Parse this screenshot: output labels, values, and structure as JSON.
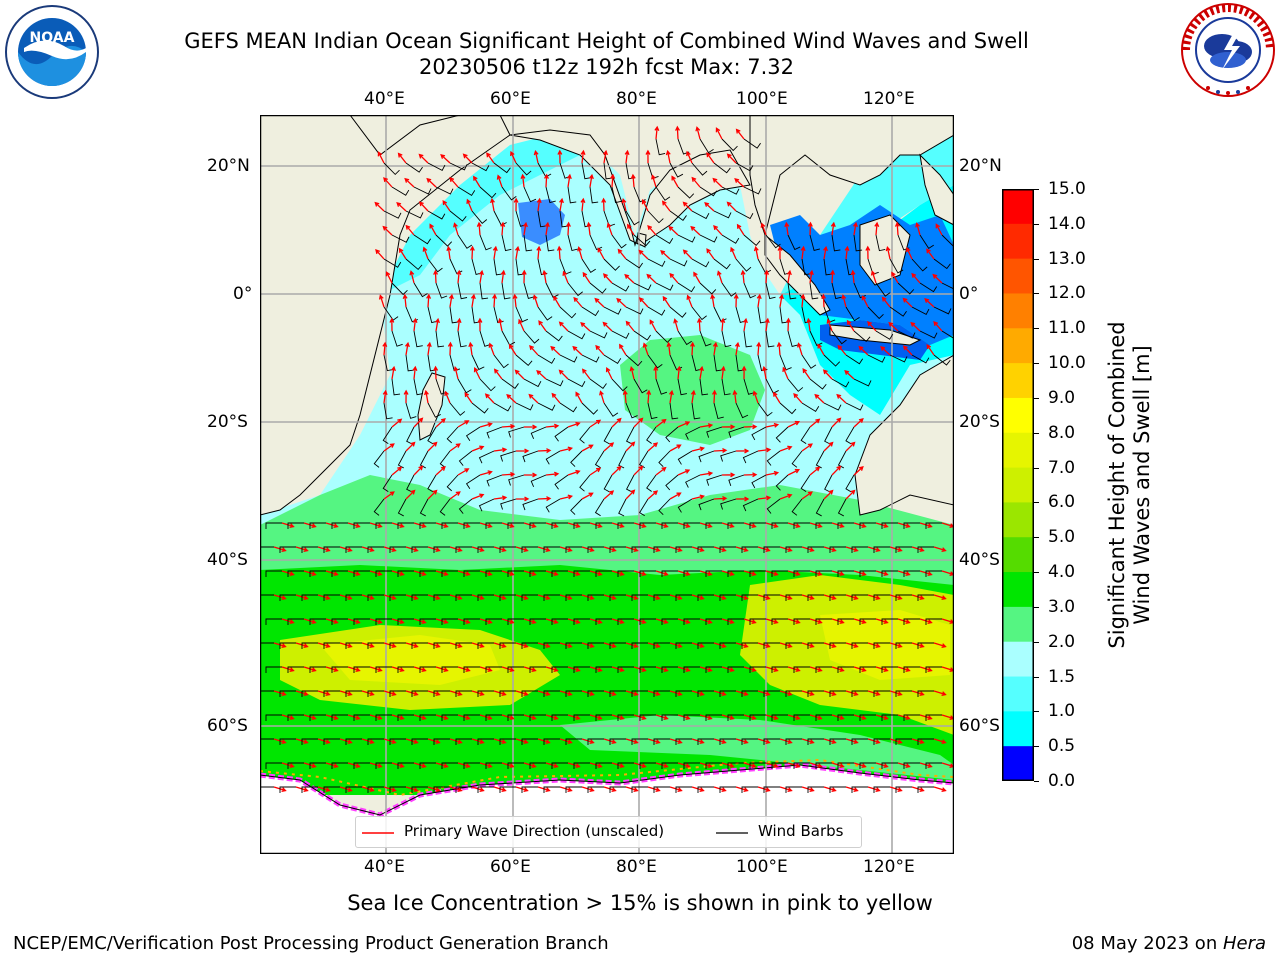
{
  "header": {
    "title_line1": "GEFS MEAN Indian Ocean Significant Height of Combined Wind Waves and Swell",
    "title_line2": "20230506 t12z 192h fcst   Max: 7.32",
    "left_logo": "noaa-logo",
    "left_logo_text": "NOAA",
    "right_logo": "nws-logo",
    "right_logo_text": "NATIONAL WEATHER SERVICE"
  },
  "map": {
    "lon_labels": [
      "40°E",
      "60°E",
      "80°E",
      "100°E",
      "120°E"
    ],
    "lat_labels": [
      "20°N",
      "0°",
      "20°S",
      "40°S",
      "60°S"
    ],
    "land_color": "#efefdf",
    "legend": {
      "wave_label": "Primary Wave Direction (unscaled)",
      "wind_label": "Wind Barbs",
      "wave_color": "#ff0000",
      "wind_color": "#000000"
    }
  },
  "colorbar": {
    "label_line1": "Significant Height of Combined",
    "label_line2": "Wind Waves and Swell [m]",
    "ticks": [
      "15.0",
      "14.0",
      "13.0",
      "12.0",
      "11.0",
      "10.0",
      "9.0",
      "8.0",
      "7.0",
      "6.0",
      "5.0",
      "4.0",
      "3.0",
      "2.0",
      "1.5",
      "1.0",
      "0.5",
      "0.0"
    ],
    "colors_top_to_bottom": [
      "#ff0000",
      "#ff2a00",
      "#ff5500",
      "#ff8000",
      "#ffaa00",
      "#ffd200",
      "#ffff00",
      "#e6f500",
      "#cdf000",
      "#9be600",
      "#55dc00",
      "#00e600",
      "#55f582",
      "#aaffff",
      "#55ffff",
      "#00ffff",
      "#0080ff",
      "#0000ff"
    ]
  },
  "footer": {
    "note": "Sea Ice Concentration > 15% is shown in pink to yellow",
    "credit": "NCEP/EMC/Verification Post Processing Product Generation Branch",
    "date": "08 May 2023 on ",
    "machine": "Hera"
  }
}
